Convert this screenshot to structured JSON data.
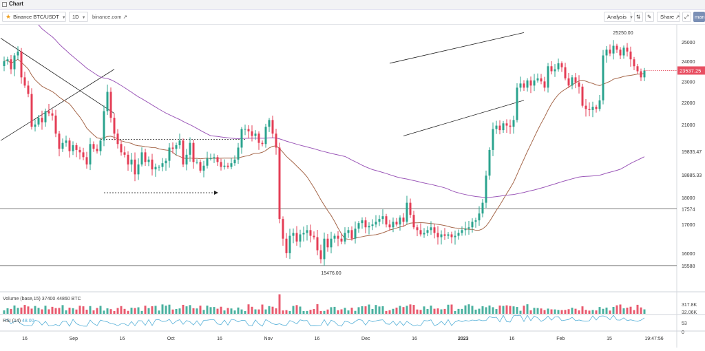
{
  "window": {
    "title": "Chart"
  },
  "toolbar": {
    "symbol": "Binance BTC/USDT",
    "interval": "1D",
    "link": "binance.com",
    "analysis": "Analysis",
    "share": "Share",
    "user": "man"
  },
  "colors": {
    "up": "#2aa38e",
    "down": "#e43d55",
    "ma_fast": "#a5674a",
    "ma_slow": "#9b57b8",
    "rsi": "#56b0d8",
    "price_tag": "#e84e61"
  },
  "chart_data": {
    "type": "candlestick",
    "symbol": "Binance BTC/USDT",
    "interval": "1D",
    "y_scale": "log",
    "ylim": [
      15050,
      25700
    ],
    "y_ticks": [
      25000,
      24000,
      23000,
      22000,
      21000,
      19835.47,
      18885.33,
      18000,
      17574,
      17000,
      16000,
      15588.0
    ],
    "x_ticks": [
      "16",
      "Sep",
      "16",
      "Oct",
      "16",
      "Nov",
      "16",
      "Dec",
      "16",
      "2023",
      "16",
      "Feb",
      "15",
      "19:47:56"
    ],
    "last_price": "23537.25",
    "annotations": [
      "25250.00",
      "15476.00"
    ],
    "horizontal_levels": [
      17574,
      15588
    ],
    "closes_daily": [
      24000,
      24100,
      23600,
      24300,
      24500,
      23200,
      22800,
      22400,
      20900,
      21000,
      21300,
      21100,
      21600,
      21500,
      21400,
      20600,
      19950,
      20200,
      20300,
      19850,
      20100,
      19900,
      19800,
      19600,
      19300,
      20150,
      19950,
      19850,
      20300,
      21600,
      22500,
      21300,
      20600,
      20150,
      19800,
      19700,
      19300,
      19500,
      18900,
      19300,
      19800,
      19400,
      19500,
      19100,
      19200,
      19200,
      19350,
      19450,
      20000,
      19950,
      20100,
      20300,
      19300,
      19700,
      20200,
      19400,
      19400,
      19050,
      19250,
      19550,
      19550,
      19600,
      19400,
      19200,
      19250,
      19200,
      19350,
      19500,
      20000,
      20800,
      20800,
      20700,
      20500,
      20600,
      20200,
      20150,
      20900,
      21200,
      20600,
      20000,
      17200,
      16500,
      16000,
      16600,
      16700,
      16400,
      16650,
      16700,
      16800,
      16600,
      16550,
      16100,
      15800,
      16500,
      16200,
      16500,
      16600,
      16500,
      16400,
      16700,
      16800,
      16500,
      16850,
      17050,
      17150,
      16900,
      16950,
      17000,
      17100,
      17200,
      17300,
      17000,
      16900,
      17100,
      17000,
      17250,
      17100,
      17800,
      17350,
      16900,
      16800,
      16650,
      16700,
      16800,
      16900,
      16700,
      16550,
      16650,
      16600,
      16650,
      16550,
      16600,
      16700,
      16800,
      16850,
      16900,
      17100,
      17150,
      17400,
      17800,
      18850,
      19900,
      20800,
      20950,
      20750,
      21050,
      20950,
      20900,
      21200,
      22700,
      22900,
      22700,
      23050,
      22800,
      23050,
      23150,
      23000,
      22700,
      23750,
      23500,
      23600,
      23900,
      23700,
      23150,
      22800,
      23200,
      22950,
      22750,
      21850,
      21700,
      21650,
      21800,
      21700,
      22100,
      24300,
      24600,
      24400,
      24800,
      24600,
      24300,
      24700,
      24500,
      24100,
      23750,
      23500,
      23200,
      23537
    ]
  },
  "rsi": {
    "label": "RSI (14)",
    "value": "48.00",
    "ticks": [
      "53",
      "0"
    ]
  },
  "volume": {
    "label": "Volume (base,15) 37400 44860 BTC",
    "ticks": [
      "317.8K",
      "32.06K"
    ]
  },
  "header": {
    "price_label": "23537.25"
  }
}
